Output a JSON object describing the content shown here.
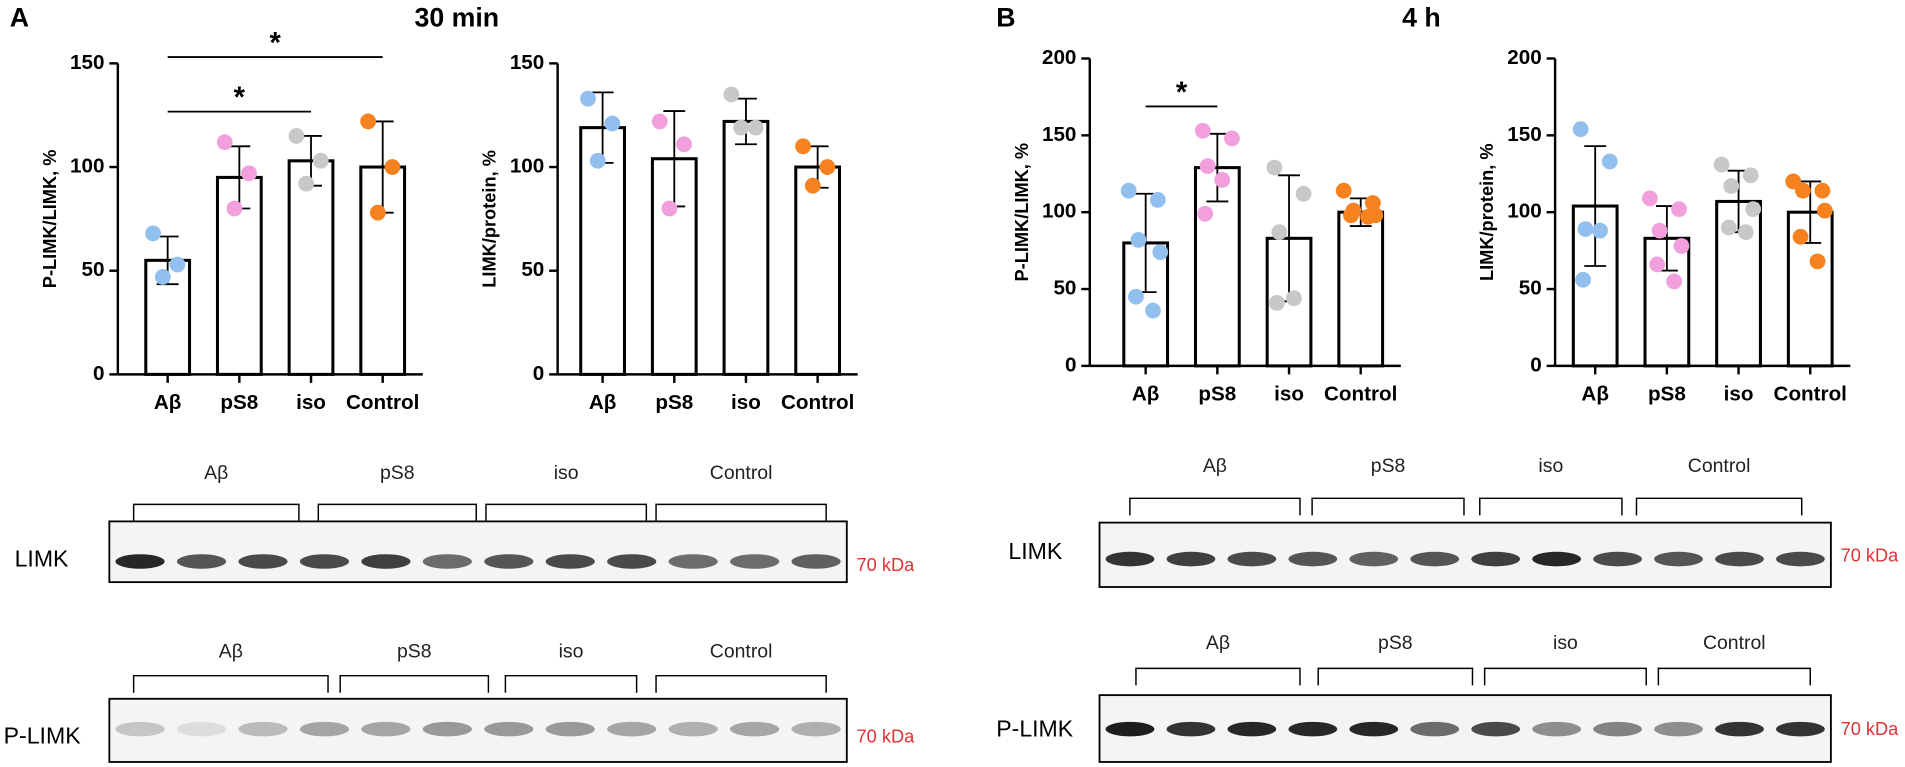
{
  "panels": [
    {
      "label": "A",
      "title": "30 min"
    },
    {
      "label": "B",
      "title": "4 h"
    }
  ],
  "chart_data": [
    {
      "type": "bar",
      "ylabel": "P-LIMK/LIMK, %",
      "categories": [
        "Aβ",
        "pS8",
        "iso",
        "Control"
      ],
      "colors": [
        "#92c0ee",
        "#f2a0dd",
        "#c8c8c8",
        "#f5821f"
      ],
      "values": [
        55,
        95,
        103,
        100
      ],
      "errors": [
        11.5,
        15,
        12,
        22
      ],
      "points": [
        [
          68,
          53,
          47
        ],
        [
          112,
          97,
          80
        ],
        [
          115,
          103,
          92
        ],
        [
          122,
          100,
          78
        ]
      ],
      "ylim": [
        0,
        150
      ],
      "yticks": [
        0,
        50,
        100,
        150
      ],
      "annotations": [
        {
          "text": "*",
          "between": [
            0,
            2
          ]
        },
        {
          "text": "*",
          "between": [
            0,
            3
          ]
        }
      ]
    },
    {
      "type": "bar",
      "ylabel": "LIMK/protein, %",
      "categories": [
        "Aβ",
        "pS8",
        "iso",
        "Control"
      ],
      "colors": [
        "#92c0ee",
        "#f2a0dd",
        "#c8c8c8",
        "#f5821f"
      ],
      "values": [
        119,
        104,
        122,
        100
      ],
      "errors": [
        17,
        23,
        11,
        10
      ],
      "points": [
        [
          133,
          121,
          103
        ],
        [
          122,
          111,
          80
        ],
        [
          135,
          119,
          119
        ],
        [
          110,
          100,
          91
        ]
      ],
      "ylim": [
        0,
        150
      ],
      "yticks": [
        0,
        50,
        100,
        150
      ],
      "annotations": []
    },
    {
      "type": "bar",
      "ylabel": "P-LIMK/LIMK, %",
      "categories": [
        "Aβ",
        "pS8",
        "iso",
        "Control"
      ],
      "colors": [
        "#92c0ee",
        "#f2a0dd",
        "#c8c8c8",
        "#f5821f"
      ],
      "values": [
        80,
        129,
        83,
        100
      ],
      "errors": [
        32,
        22,
        41,
        9
      ],
      "points": [
        [
          114,
          108,
          82,
          74,
          45,
          36
        ],
        [
          153,
          148,
          130,
          121,
          99
        ],
        [
          129,
          112,
          87,
          44,
          41
        ],
        [
          114,
          106,
          101,
          98,
          98,
          97
        ]
      ],
      "ylim": [
        0,
        200
      ],
      "yticks": [
        0,
        50,
        100,
        150,
        200
      ],
      "annotations": [
        {
          "text": "*",
          "between": [
            0,
            1
          ]
        }
      ]
    },
    {
      "type": "bar",
      "ylabel": "LIMK/protein, %",
      "categories": [
        "Aβ",
        "pS8",
        "iso",
        "Control"
      ],
      "colors": [
        "#92c0ee",
        "#f2a0dd",
        "#c8c8c8",
        "#f5821f"
      ],
      "values": [
        104,
        83,
        107,
        100
      ],
      "errors": [
        39,
        21,
        20,
        20
      ],
      "points": [
        [
          154,
          133,
          89,
          88,
          56
        ],
        [
          109,
          102,
          88,
          78,
          66,
          55
        ],
        [
          131,
          124,
          117,
          102,
          90,
          87
        ],
        [
          120,
          114,
          114,
          101,
          84,
          68
        ]
      ],
      "ylim": [
        0,
        200
      ],
      "yticks": [
        0,
        50,
        100,
        150,
        200
      ],
      "annotations": []
    }
  ],
  "blots": [
    {
      "groups": [
        "Aβ",
        "pS8",
        "iso",
        "Control"
      ],
      "row": "LIMK",
      "marker": "70 kDa"
    },
    {
      "groups": [
        "Aβ",
        "pS8",
        "iso",
        "Control"
      ],
      "row": "P-LIMK",
      "marker": "70 kDa"
    },
    {
      "groups": [
        "Aβ",
        "pS8",
        "iso",
        "Control"
      ],
      "row": "LIMK",
      "marker": "70 kDa"
    },
    {
      "groups": [
        "Aβ",
        "pS8",
        "iso",
        "Control"
      ],
      "row": "P-LIMK",
      "marker": "70 kDa"
    }
  ]
}
